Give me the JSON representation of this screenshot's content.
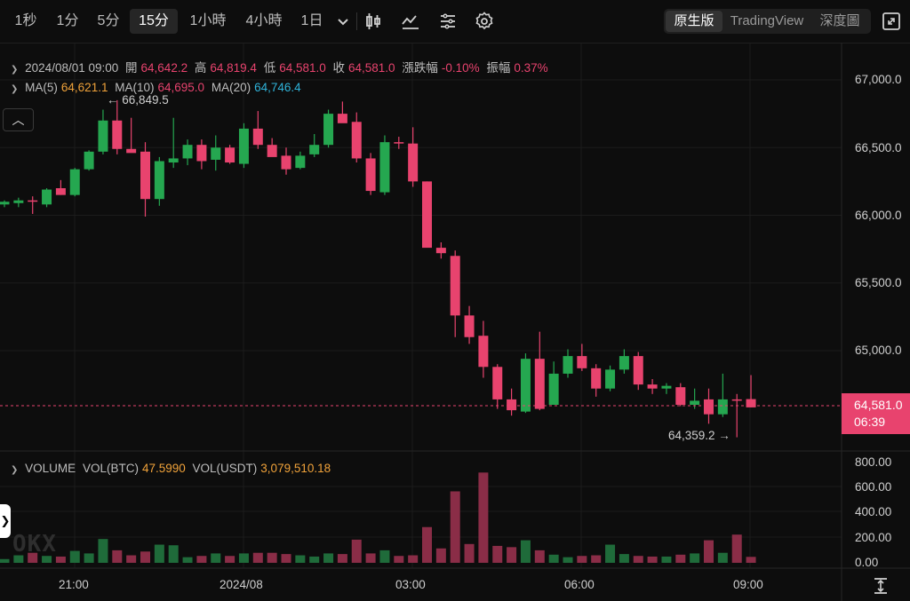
{
  "toolbar": {
    "timeframes": [
      "1秒",
      "1分",
      "5分",
      "15分",
      "1小時",
      "4小時",
      "1日"
    ],
    "active_timeframe": "15分",
    "icons": [
      "chevron-down-icon",
      "candlestick-type-icon",
      "indicator-icon",
      "drawing-list-icon",
      "settings-icon"
    ],
    "modes": [
      "原生版",
      "TradingView",
      "深度圖"
    ],
    "active_mode": "原生版",
    "fullscreen_icon": "fullscreen-icon"
  },
  "ohlc": {
    "date": "2024/08/01 09:00",
    "open_label": "開",
    "open": "64,642.2",
    "high_label": "高",
    "high": "64,819.4",
    "low_label": "低",
    "low": "64,581.0",
    "close_label": "收",
    "close": "64,581.0",
    "change_label": "漲跌幅",
    "change": "-0.10%",
    "amplitude_label": "振幅",
    "amplitude": "0.37%"
  },
  "ma": {
    "ma5_label": "MA(5)",
    "ma5": "64,621.1",
    "ma10_label": "MA(10)",
    "ma10": "64,695.0",
    "ma20_label": "MA(20)",
    "ma20": "64,746.4"
  },
  "volume": {
    "label": "VOLUME",
    "btc_label": "VOL(BTC)",
    "btc": "47.5990",
    "usdt_label": "VOL(USDT)",
    "usdt": "3,079,510.18"
  },
  "price_axis": [
    "67,000.0",
    "66,500.0",
    "66,000.0",
    "65,500.0",
    "65,000.0"
  ],
  "volume_axis": [
    "800.00",
    "600.00",
    "400.00",
    "200.00",
    "0.00"
  ],
  "time_axis": [
    "21:00",
    "2024/08",
    "03:00",
    "06:00",
    "09:00"
  ],
  "current_price": {
    "price": "64,581.0",
    "countdown": "06:39"
  },
  "annotations": {
    "high": "← 66,849.5",
    "low": "64,359.2 →"
  },
  "colors": {
    "up": "#25a750",
    "down": "#e8436e",
    "background": "#0d0d0d"
  },
  "chart_data": {
    "type": "candlestick",
    "interval": "15m",
    "price_ylim": [
      64300,
      67000
    ],
    "volume_ylim": [
      0,
      800
    ],
    "candles": [
      {
        "o": 66080,
        "h": 66110,
        "l": 66060,
        "c": 66100,
        "v": 30
      },
      {
        "o": 66090,
        "h": 66130,
        "l": 66060,
        "c": 66110,
        "v": 60
      },
      {
        "o": 66110,
        "h": 66140,
        "l": 66010,
        "c": 66100,
        "v": 80
      },
      {
        "o": 66080,
        "h": 66200,
        "l": 66060,
        "c": 66190,
        "v": 55
      },
      {
        "o": 66200,
        "h": 66260,
        "l": 66150,
        "c": 66150,
        "v": 50
      },
      {
        "o": 66150,
        "h": 66350,
        "l": 66140,
        "c": 66340,
        "v": 95
      },
      {
        "o": 66340,
        "h": 66480,
        "l": 66330,
        "c": 66470,
        "v": 75
      },
      {
        "o": 66470,
        "h": 66780,
        "l": 66450,
        "c": 66700,
        "v": 190
      },
      {
        "o": 66700,
        "h": 66850,
        "l": 66450,
        "c": 66490,
        "v": 100
      },
      {
        "o": 66490,
        "h": 66720,
        "l": 66470,
        "c": 66460,
        "v": 60
      },
      {
        "o": 66470,
        "h": 66540,
        "l": 65990,
        "c": 66120,
        "v": 90
      },
      {
        "o": 66120,
        "h": 66430,
        "l": 66070,
        "c": 66400,
        "v": 145
      },
      {
        "o": 66390,
        "h": 66720,
        "l": 66350,
        "c": 66420,
        "v": 140
      },
      {
        "o": 66420,
        "h": 66560,
        "l": 66370,
        "c": 66520,
        "v": 45
      },
      {
        "o": 66520,
        "h": 66560,
        "l": 66340,
        "c": 66400,
        "v": 55
      },
      {
        "o": 66410,
        "h": 66590,
        "l": 66330,
        "c": 66500,
        "v": 75
      },
      {
        "o": 66500,
        "h": 66520,
        "l": 66380,
        "c": 66390,
        "v": 55
      },
      {
        "o": 66380,
        "h": 66680,
        "l": 66350,
        "c": 66640,
        "v": 75
      },
      {
        "o": 66640,
        "h": 66770,
        "l": 66490,
        "c": 66520,
        "v": 80
      },
      {
        "o": 66520,
        "h": 66570,
        "l": 66440,
        "c": 66430,
        "v": 80
      },
      {
        "o": 66440,
        "h": 66500,
        "l": 66300,
        "c": 66340,
        "v": 70
      },
      {
        "o": 66350,
        "h": 66470,
        "l": 66340,
        "c": 66440,
        "v": 60
      },
      {
        "o": 66450,
        "h": 66600,
        "l": 66430,
        "c": 66520,
        "v": 50
      },
      {
        "o": 66520,
        "h": 66780,
        "l": 66500,
        "c": 66750,
        "v": 75
      },
      {
        "o": 66750,
        "h": 66840,
        "l": 66690,
        "c": 66680,
        "v": 70
      },
      {
        "o": 66690,
        "h": 66760,
        "l": 66390,
        "c": 66420,
        "v": 185
      },
      {
        "o": 66420,
        "h": 66460,
        "l": 66150,
        "c": 66180,
        "v": 75
      },
      {
        "o": 66170,
        "h": 66590,
        "l": 66150,
        "c": 66540,
        "v": 100
      },
      {
        "o": 66540,
        "h": 66580,
        "l": 66490,
        "c": 66530,
        "v": 55
      },
      {
        "o": 66530,
        "h": 66650,
        "l": 66210,
        "c": 66250,
        "v": 60
      },
      {
        "o": 66250,
        "h": 66250,
        "l": 65780,
        "c": 65760,
        "v": 285
      },
      {
        "o": 65760,
        "h": 65800,
        "l": 65680,
        "c": 65720,
        "v": 115
      },
      {
        "o": 65700,
        "h": 65740,
        "l": 65100,
        "c": 65260,
        "v": 570
      },
      {
        "o": 65260,
        "h": 65330,
        "l": 65050,
        "c": 65100,
        "v": 150
      },
      {
        "o": 65110,
        "h": 65220,
        "l": 64800,
        "c": 64880,
        "v": 720
      },
      {
        "o": 64880,
        "h": 64900,
        "l": 64570,
        "c": 64640,
        "v": 135
      },
      {
        "o": 64640,
        "h": 64720,
        "l": 64520,
        "c": 64560,
        "v": 125
      },
      {
        "o": 64550,
        "h": 64980,
        "l": 64540,
        "c": 64940,
        "v": 180
      },
      {
        "o": 64940,
        "h": 65140,
        "l": 64560,
        "c": 64570,
        "v": 100
      },
      {
        "o": 64600,
        "h": 64920,
        "l": 64600,
        "c": 64830,
        "v": 65
      },
      {
        "o": 64830,
        "h": 65010,
        "l": 64800,
        "c": 64960,
        "v": 45
      },
      {
        "o": 64960,
        "h": 65050,
        "l": 64850,
        "c": 64870,
        "v": 55
      },
      {
        "o": 64870,
        "h": 64900,
        "l": 64660,
        "c": 64720,
        "v": 60
      },
      {
        "o": 64720,
        "h": 64890,
        "l": 64700,
        "c": 64860,
        "v": 145
      },
      {
        "o": 64860,
        "h": 65010,
        "l": 64830,
        "c": 64960,
        "v": 70
      },
      {
        "o": 64960,
        "h": 64990,
        "l": 64710,
        "c": 64750,
        "v": 55
      },
      {
        "o": 64750,
        "h": 64790,
        "l": 64680,
        "c": 64720,
        "v": 50
      },
      {
        "o": 64720,
        "h": 64760,
        "l": 64680,
        "c": 64740,
        "v": 50
      },
      {
        "o": 64730,
        "h": 64760,
        "l": 64590,
        "c": 64600,
        "v": 65
      },
      {
        "o": 64600,
        "h": 64720,
        "l": 64570,
        "c": 64630,
        "v": 75
      },
      {
        "o": 64640,
        "h": 64720,
        "l": 64460,
        "c": 64530,
        "v": 180
      },
      {
        "o": 64530,
        "h": 64830,
        "l": 64510,
        "c": 64640,
        "v": 80
      },
      {
        "o": 64640,
        "h": 64680,
        "l": 64360,
        "c": 64630,
        "v": 225
      },
      {
        "o": 64642.2,
        "h": 64819.4,
        "l": 64581.0,
        "c": 64581.0,
        "v": 47.599
      }
    ]
  }
}
